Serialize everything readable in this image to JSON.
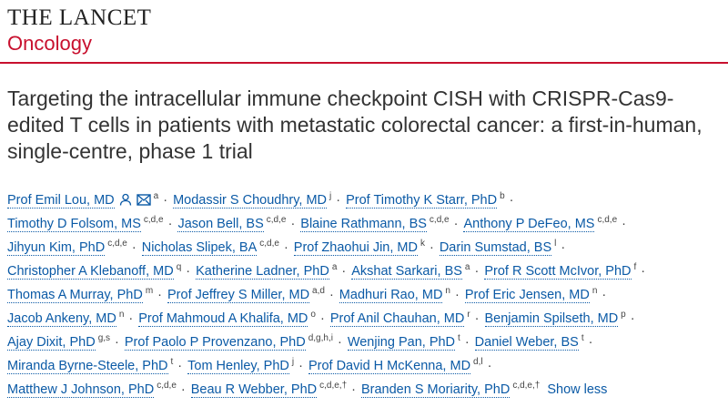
{
  "header": {
    "journal": "THE LANCET",
    "subjournal": "Oncology"
  },
  "article": {
    "title": "Targeting the intracellular immune checkpoint CISH with CRISPR-Cas9-edited T cells in patients with metastatic colorectal cancer: a first-in-human, single-centre, phase 1 trial",
    "separator": "·",
    "author_lines": [
      [
        {
          "name": "Prof Emil Lou, MD",
          "affiliations": "a"
        },
        {
          "name": "Modassir S Choudhry, MD",
          "affiliations": "j"
        },
        {
          "name": "Prof Timothy K Starr, PhD",
          "affiliations": "b"
        }
      ],
      [
        {
          "name": "Timothy D Folsom, MS",
          "affiliations": "c,d,e"
        },
        {
          "name": "Jason Bell, BS",
          "affiliations": "c,d,e"
        },
        {
          "name": "Blaine Rathmann, BS",
          "affiliations": "c,d,e"
        },
        {
          "name": "Anthony P DeFeo, MS",
          "affiliations": "c,d,e"
        }
      ],
      [
        {
          "name": "Jihyun Kim, PhD",
          "affiliations": "c,d,e"
        },
        {
          "name": "Nicholas Slipek, BA",
          "affiliations": "c,d,e"
        },
        {
          "name": "Prof Zhaohui Jin, MD",
          "affiliations": "k"
        },
        {
          "name": "Darin Sumstad, BS",
          "affiliations": "l"
        }
      ],
      [
        {
          "name": "Christopher A Klebanoff, MD",
          "affiliations": "q"
        },
        {
          "name": "Katherine Ladner, PhD",
          "affiliations": "a"
        },
        {
          "name": "Akshat Sarkari, BS",
          "affiliations": "a"
        },
        {
          "name": "Prof R Scott McIvor, PhD",
          "affiliations": "f"
        }
      ],
      [
        {
          "name": "Thomas A Murray, PhD",
          "affiliations": "m"
        },
        {
          "name": "Prof Jeffrey S Miller, MD",
          "affiliations": "a,d"
        },
        {
          "name": "Madhuri Rao, MD",
          "affiliations": "n"
        },
        {
          "name": "Prof Eric Jensen, MD",
          "affiliations": "n"
        }
      ],
      [
        {
          "name": "Jacob Ankeny, MD",
          "affiliations": "n"
        },
        {
          "name": "Prof Mahmoud A Khalifa, MD",
          "affiliations": "o"
        },
        {
          "name": "Prof Anil Chauhan, MD",
          "affiliations": "r"
        },
        {
          "name": "Benjamin Spilseth, MD",
          "affiliations": "p"
        }
      ],
      [
        {
          "name": "Ajay Dixit, PhD",
          "affiliations": "g,s"
        },
        {
          "name": "Prof Paolo P Provenzano, PhD",
          "affiliations": "d,g,h,i"
        },
        {
          "name": "Wenjing Pan, PhD",
          "affiliations": "t"
        },
        {
          "name": "Daniel Weber, BS",
          "affiliations": "t"
        }
      ],
      [
        {
          "name": "Miranda Byrne-Steele, PhD",
          "affiliations": "t"
        },
        {
          "name": "Tom Henley, PhD",
          "affiliations": "j"
        },
        {
          "name": "Prof David H McKenna, MD",
          "affiliations": "d,l"
        }
      ],
      [
        {
          "name": "Matthew J Johnson, PhD",
          "affiliations": "c,d,e"
        },
        {
          "name": "Beau R Webber, PhD",
          "affiliations": "c,d,e,†"
        },
        {
          "name": "Branden S Moriarity, PhD",
          "affiliations": "c,d,e,†"
        }
      ]
    ],
    "toggle": "Show less"
  }
}
